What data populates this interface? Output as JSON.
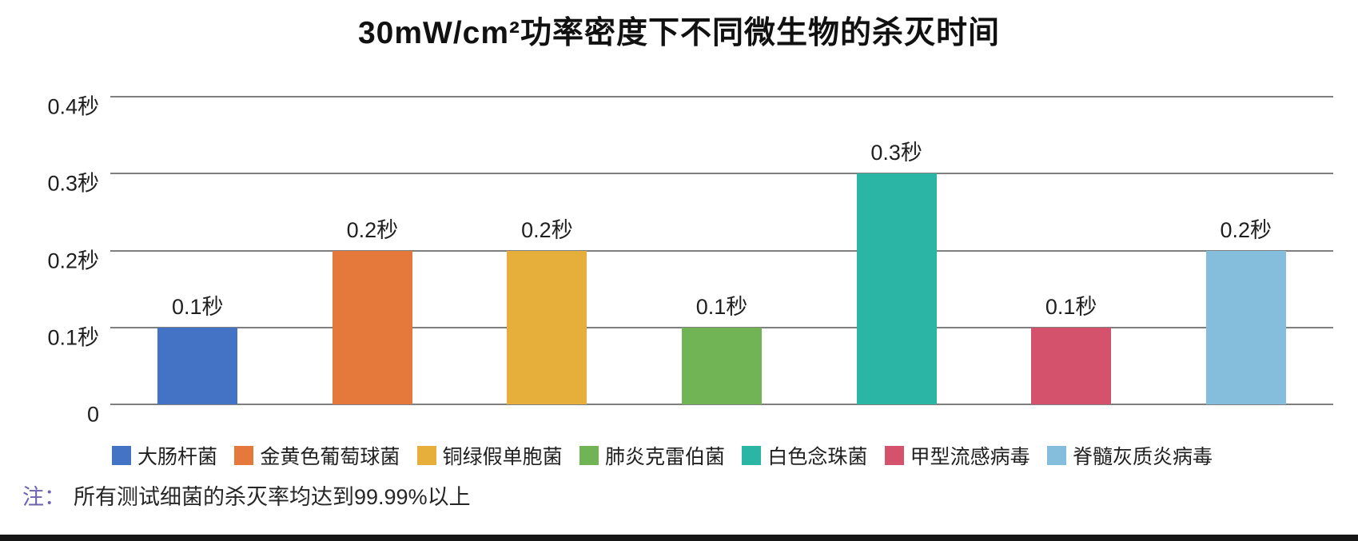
{
  "title": "30mW/cm²功率密度下不同微生物的杀灭时间",
  "chart_data": {
    "type": "bar",
    "title": "30mW/cm²功率密度下不同微生物的杀灭时间",
    "categories": [
      "大肠杆菌",
      "金黄色葡萄球菌",
      "铜绿假单胞菌",
      "肺炎克雷伯菌",
      "白色念珠菌",
      "甲型流感病毒",
      "脊髓灰质炎病毒"
    ],
    "values": [
      0.1,
      0.2,
      0.2,
      0.1,
      0.3,
      0.1,
      0.2
    ],
    "data_labels": [
      "0.1秒",
      "0.2秒",
      "0.2秒",
      "0.1秒",
      "0.3秒",
      "0.1秒",
      "0.2秒"
    ],
    "bar_colors": [
      "#4472c4",
      "#e5793c",
      "#e6ae3a",
      "#70b456",
      "#2bb5a4",
      "#d4526b",
      "#85bedc"
    ],
    "unit": "秒",
    "xlabel": "",
    "ylabel": "",
    "ylim": [
      0,
      0.4
    ],
    "yticks": [
      0.4,
      0.3,
      0.2,
      0.1,
      0
    ],
    "ytick_labels": [
      "0.4秒",
      "0.3秒",
      "0.2秒",
      "0.1秒",
      "0"
    ],
    "grid": true,
    "gridline_color": "#7f7f7f",
    "legend_position": "bottom"
  },
  "note": {
    "prefix": "注：",
    "text": "所有测试细菌的杀灭率均达到99.99%以上"
  },
  "colors": {
    "title_text": "#111111",
    "axis_text": "#1f1f1f",
    "note_prefix": "#6b63ae",
    "note_text": "#262626",
    "bottom_bar": "#161616"
  }
}
